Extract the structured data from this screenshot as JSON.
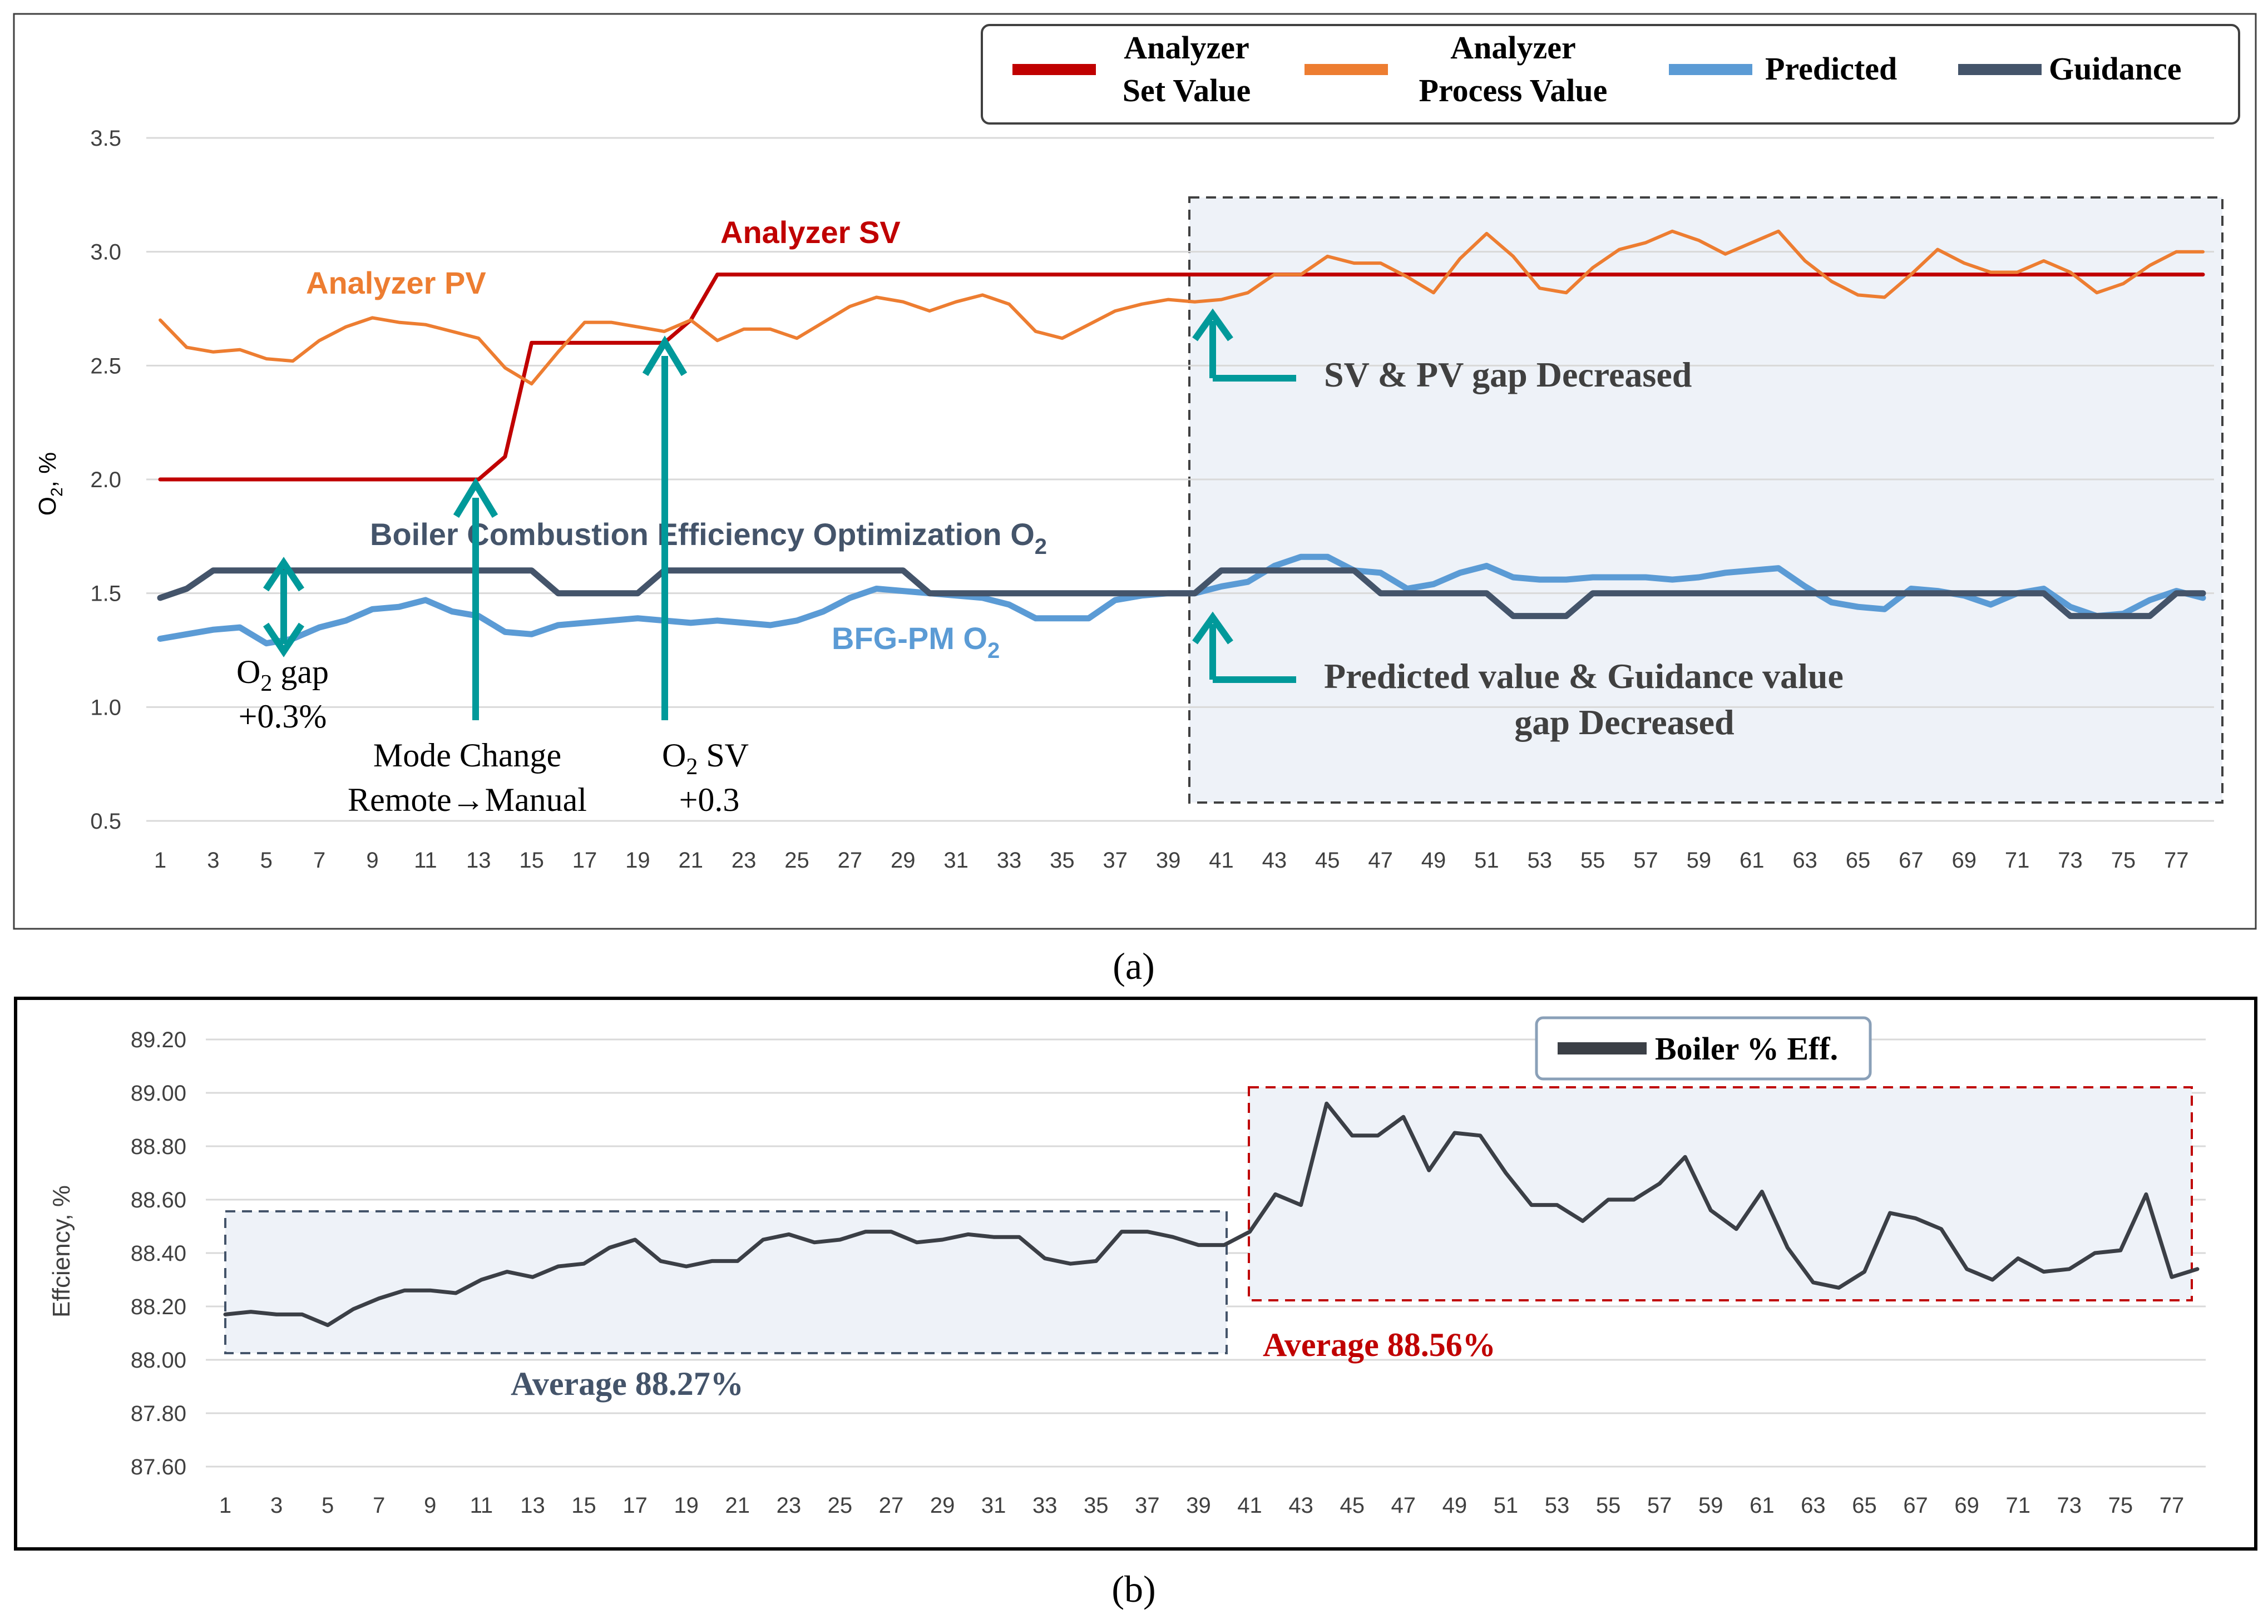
{
  "colors": {
    "sv": "#c00000",
    "pv": "#ed7d31",
    "predicted": "#5b9bd5",
    "guidance": "#44546a",
    "arrow": "#00999a",
    "eff": "#3b3f46",
    "annot_dark": "#44546a",
    "annot_red": "#c00000"
  },
  "chart_data": [
    {
      "id": "a",
      "type": "line",
      "panel_label": "(a)",
      "ylabel": "O₂, %",
      "ylim": [
        0.5,
        3.5
      ],
      "yticks": [
        "0.5",
        "1.0",
        "1.5",
        "2.0",
        "2.5",
        "3.0",
        "3.5"
      ],
      "xticks": [
        "1",
        "3",
        "5",
        "7",
        "9",
        "11",
        "13",
        "15",
        "17",
        "19",
        "21",
        "23",
        "25",
        "27",
        "29",
        "31",
        "33",
        "35",
        "37",
        "39",
        "41",
        "43",
        "45",
        "47",
        "49",
        "51",
        "53",
        "55",
        "57",
        "59",
        "61",
        "63",
        "65",
        "67",
        "69",
        "71",
        "73",
        "75",
        "77"
      ],
      "x_start": 1,
      "x_end": 78,
      "grid": true,
      "legend_position": "top-right",
      "legend": [
        {
          "key": "sv",
          "lines": [
            "Analyzer",
            "Set Value"
          ]
        },
        {
          "key": "pv",
          "lines": [
            "Analyzer",
            "Process Value"
          ]
        },
        {
          "key": "predicted",
          "lines": [
            "Predicted"
          ]
        },
        {
          "key": "guidance",
          "lines": [
            "Guidance"
          ]
        }
      ],
      "series": [
        {
          "name": "Analyzer Set Value",
          "key": "sv",
          "values": [
            2.0,
            2.0,
            2.0,
            2.0,
            2.0,
            2.0,
            2.0,
            2.0,
            2.0,
            2.0,
            2.0,
            2.0,
            2.0,
            2.1,
            2.6,
            2.6,
            2.6,
            2.6,
            2.6,
            2.6,
            2.7,
            2.9,
            2.9,
            2.9,
            2.9,
            2.9,
            2.9,
            2.9,
            2.9,
            2.9,
            2.9,
            2.9,
            2.9,
            2.9,
            2.9,
            2.9,
            2.9,
            2.9,
            2.9,
            2.9,
            2.9,
            2.9,
            2.9,
            2.9,
            2.9,
            2.9,
            2.9,
            2.9,
            2.9,
            2.9,
            2.9,
            2.9,
            2.9,
            2.9,
            2.9,
            2.9,
            2.9,
            2.9,
            2.9,
            2.9,
            2.9,
            2.9,
            2.9,
            2.9,
            2.9,
            2.9,
            2.9,
            2.9,
            2.9,
            2.9,
            2.9,
            2.9,
            2.9,
            2.9,
            2.9,
            2.9,
            2.9,
            2.9
          ]
        },
        {
          "name": "Analyzer Process Value",
          "key": "pv",
          "values": [
            2.7,
            2.58,
            2.56,
            2.57,
            2.53,
            2.52,
            2.61,
            2.67,
            2.71,
            2.69,
            2.68,
            2.65,
            2.62,
            2.49,
            2.42,
            2.56,
            2.69,
            2.69,
            2.67,
            2.65,
            2.7,
            2.61,
            2.66,
            2.66,
            2.62,
            2.69,
            2.76,
            2.8,
            2.78,
            2.74,
            2.78,
            2.81,
            2.77,
            2.65,
            2.62,
            2.68,
            2.74,
            2.77,
            2.79,
            2.78,
            2.79,
            2.82,
            2.9,
            2.9,
            2.98,
            2.95,
            2.95,
            2.89,
            2.82,
            2.97,
            3.08,
            2.98,
            2.84,
            2.82,
            2.93,
            3.01,
            3.04,
            3.09,
            3.05,
            2.99,
            3.04,
            3.09,
            2.96,
            2.87,
            2.81,
            2.8,
            2.9,
            3.01,
            2.95,
            2.91,
            2.91,
            2.96,
            2.91,
            2.82,
            2.86,
            2.94,
            3.0,
            3.0
          ]
        },
        {
          "name": "Predicted",
          "key": "predicted",
          "values": [
            1.3,
            1.32,
            1.34,
            1.35,
            1.28,
            1.3,
            1.35,
            1.38,
            1.43,
            1.44,
            1.47,
            1.42,
            1.4,
            1.33,
            1.32,
            1.36,
            1.37,
            1.38,
            1.39,
            1.38,
            1.37,
            1.38,
            1.37,
            1.36,
            1.38,
            1.42,
            1.48,
            1.52,
            1.51,
            1.5,
            1.49,
            1.48,
            1.45,
            1.39,
            1.39,
            1.39,
            1.47,
            1.49,
            1.5,
            1.5,
            1.53,
            1.55,
            1.62,
            1.66,
            1.66,
            1.6,
            1.59,
            1.52,
            1.54,
            1.59,
            1.62,
            1.57,
            1.56,
            1.56,
            1.57,
            1.57,
            1.57,
            1.56,
            1.57,
            1.59,
            1.6,
            1.61,
            1.53,
            1.46,
            1.44,
            1.43,
            1.52,
            1.51,
            1.49,
            1.45,
            1.5,
            1.52,
            1.44,
            1.4,
            1.41,
            1.47,
            1.51,
            1.48
          ]
        },
        {
          "name": "Guidance",
          "key": "guidance",
          "values": [
            1.48,
            1.52,
            1.6,
            1.6,
            1.6,
            1.6,
            1.6,
            1.6,
            1.6,
            1.6,
            1.6,
            1.6,
            1.6,
            1.6,
            1.6,
            1.5,
            1.5,
            1.5,
            1.5,
            1.6,
            1.6,
            1.6,
            1.6,
            1.6,
            1.6,
            1.6,
            1.6,
            1.6,
            1.6,
            1.5,
            1.5,
            1.5,
            1.5,
            1.5,
            1.5,
            1.5,
            1.5,
            1.5,
            1.5,
            1.5,
            1.6,
            1.6,
            1.6,
            1.6,
            1.6,
            1.6,
            1.5,
            1.5,
            1.5,
            1.5,
            1.5,
            1.4,
            1.4,
            1.4,
            1.5,
            1.5,
            1.5,
            1.5,
            1.5,
            1.5,
            1.5,
            1.5,
            1.5,
            1.5,
            1.5,
            1.5,
            1.5,
            1.5,
            1.5,
            1.5,
            1.5,
            1.5,
            1.4,
            1.4,
            1.4,
            1.4,
            1.5,
            1.5
          ]
        }
      ],
      "annotations": {
        "analyzer_sv": "Analyzer SV",
        "analyzer_pv": "Analyzer PV",
        "boiler_opt_main": "Boiler Combustion Efficiency Optimization O",
        "boiler_opt_sub": "2",
        "bfg_main": "BFG-PM O",
        "bfg_sub": "2",
        "o2gap_main": "O",
        "o2gap_sub": "2",
        "o2gap_rest": " gap",
        "o2gap_value": "+0.3%",
        "mode_line1": "Mode Change",
        "mode_line2": "Remote→Manual",
        "o2sv_main": "O",
        "o2sv_sub": "2",
        "o2sv_rest": " SV",
        "o2sv_value": "+0.3",
        "sv_pv_gap": "SV & PV gap Decreased",
        "pred_guid_line1": "Predicted  value & Guidance value",
        "pred_guid_line2": "gap Decreased"
      }
    },
    {
      "id": "b",
      "type": "line",
      "panel_label": "(b)",
      "ylabel": "Effciency, %",
      "ylim": [
        87.6,
        89.2
      ],
      "yticks": [
        "87.60",
        "87.80",
        "88.00",
        "88.20",
        "88.40",
        "88.60",
        "88.80",
        "89.00",
        "89.20"
      ],
      "xticks": [
        "1",
        "3",
        "5",
        "7",
        "9",
        "11",
        "13",
        "15",
        "17",
        "19",
        "21",
        "23",
        "25",
        "27",
        "29",
        "31",
        "33",
        "35",
        "37",
        "39",
        "41",
        "43",
        "45",
        "47",
        "49",
        "51",
        "53",
        "55",
        "57",
        "59",
        "61",
        "63",
        "65",
        "67",
        "69",
        "71",
        "73",
        "75",
        "77"
      ],
      "x_start": 1,
      "x_end": 78,
      "grid": true,
      "legend_position": "top-center",
      "legend": [
        {
          "key": "eff",
          "lines": [
            "Boiler % Eff."
          ]
        }
      ],
      "series": [
        {
          "name": "Boiler % Eff.",
          "key": "eff",
          "values": [
            88.17,
            88.18,
            88.17,
            88.17,
            88.13,
            88.19,
            88.23,
            88.26,
            88.26,
            88.25,
            88.3,
            88.33,
            88.31,
            88.35,
            88.36,
            88.42,
            88.45,
            88.37,
            88.35,
            88.37,
            88.37,
            88.45,
            88.47,
            88.44,
            88.45,
            88.48,
            88.48,
            88.44,
            88.45,
            88.47,
            88.46,
            88.46,
            88.38,
            88.36,
            88.37,
            88.48,
            88.48,
            88.46,
            88.43,
            88.43,
            88.48,
            88.62,
            88.58,
            88.96,
            88.84,
            88.84,
            88.91,
            88.71,
            88.85,
            88.84,
            88.7,
            88.58,
            88.58,
            88.52,
            88.6,
            88.6,
            88.66,
            88.76,
            88.56,
            88.49,
            88.63,
            88.42,
            88.29,
            88.27,
            88.33,
            88.55,
            88.53,
            88.49,
            88.34,
            88.3,
            88.38,
            88.33,
            88.34,
            88.4,
            88.41,
            88.62,
            88.31,
            88.34
          ]
        }
      ],
      "annotations": {
        "avg_before": "Average 88.27%",
        "avg_after": "Average 88.56%"
      }
    }
  ]
}
